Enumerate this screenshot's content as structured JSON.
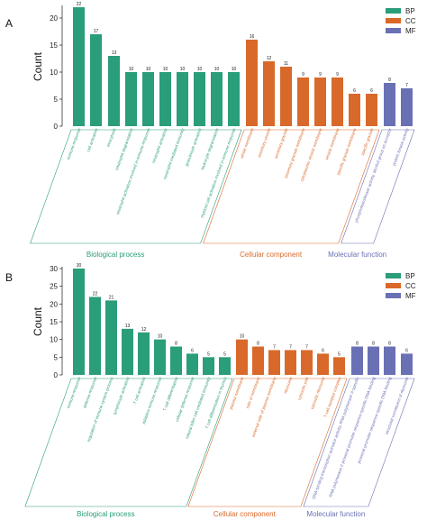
{
  "colors": {
    "BP": "#2a9d7a",
    "CC": "#d9692a",
    "MF": "#6a70b4"
  },
  "chart_data": [
    {
      "type": "bar",
      "panel": "A",
      "ylabel": "Count",
      "ylim": [
        0,
        22
      ],
      "yticks": [
        0,
        5,
        10,
        15,
        20
      ],
      "legend_position": "top-right",
      "legend": [
        {
          "key": "BP",
          "label": "BP"
        },
        {
          "key": "CC",
          "label": "CC"
        },
        {
          "key": "MF",
          "label": "MF"
        }
      ],
      "groups": [
        {
          "key": "BP",
          "label": "Biological process"
        },
        {
          "key": "CC",
          "label": "Cellular component"
        },
        {
          "key": "MF",
          "label": "Molecular function"
        }
      ],
      "categories": [
        "immune response",
        "cell activation",
        "exocytosis",
        "neutrophil degranulation",
        "neutrophil activation involved in immune response",
        "neutrophil activation",
        "neutrophil mediated immunity",
        "granulocyte activation",
        "leukocyte degranulation",
        "myeloid cell activation involved in immune response",
        "whole membrane",
        "secretory vesicle",
        "secretory granule",
        "secretory granule membrane",
        "cytoplasmic vesicle membrane",
        "vesicle membrane",
        "specific granule membrane",
        "specific granule",
        "phosphotransferase activity, alcohol group as acceptor",
        "protein kinase activity"
      ],
      "values": [
        22,
        17,
        13,
        10,
        10,
        10,
        10,
        10,
        10,
        10,
        16,
        12,
        11,
        9,
        9,
        9,
        6,
        6,
        8,
        7
      ],
      "group_of": [
        "BP",
        "BP",
        "BP",
        "BP",
        "BP",
        "BP",
        "BP",
        "BP",
        "BP",
        "BP",
        "CC",
        "CC",
        "CC",
        "CC",
        "CC",
        "CC",
        "CC",
        "CC",
        "MF",
        "MF"
      ]
    },
    {
      "type": "bar",
      "panel": "B",
      "ylabel": "Count",
      "ylim": [
        0,
        30
      ],
      "yticks": [
        0,
        5,
        10,
        15,
        20,
        25,
        30
      ],
      "legend_position": "top-right",
      "legend": [
        {
          "key": "BP",
          "label": "BP"
        },
        {
          "key": "CC",
          "label": "CC"
        },
        {
          "key": "MF",
          "label": "MF"
        }
      ],
      "groups": [
        {
          "key": "BP",
          "label": "Biological process"
        },
        {
          "key": "CC",
          "label": "Cellular component"
        },
        {
          "key": "MF",
          "label": "Molecular function"
        }
      ],
      "categories": [
        "immune response",
        "defense response",
        "regulation of immune system process",
        "lymphocyte activation",
        "T cell activation",
        "adaptive immune response",
        "T cell differentiation",
        "cellular defense response",
        "natural killer cell mediated immunity",
        "T cell differentiation in thymus",
        "plasma membrane",
        "side of membrane",
        "external side of plasma membrane",
        "ribosome",
        "cytosolic part",
        "cytosolic ribosome",
        "T cell receptor complex",
        "DNA-binding transcription activator activity, RNA polymerase II-specific",
        "RNA polymerase II proximal promoter sequence-specific DNA binding",
        "proximal promoter sequence-specific DNA binding",
        "structural constituent of ribosome"
      ],
      "values": [
        30,
        22,
        21,
        13,
        12,
        10,
        8,
        6,
        5,
        5,
        10,
        8,
        7,
        7,
        7,
        6,
        5,
        8,
        8,
        8,
        6
      ],
      "group_of": [
        "BP",
        "BP",
        "BP",
        "BP",
        "BP",
        "BP",
        "BP",
        "BP",
        "BP",
        "BP",
        "CC",
        "CC",
        "CC",
        "CC",
        "CC",
        "CC",
        "CC",
        "MF",
        "MF",
        "MF",
        "MF"
      ]
    }
  ]
}
